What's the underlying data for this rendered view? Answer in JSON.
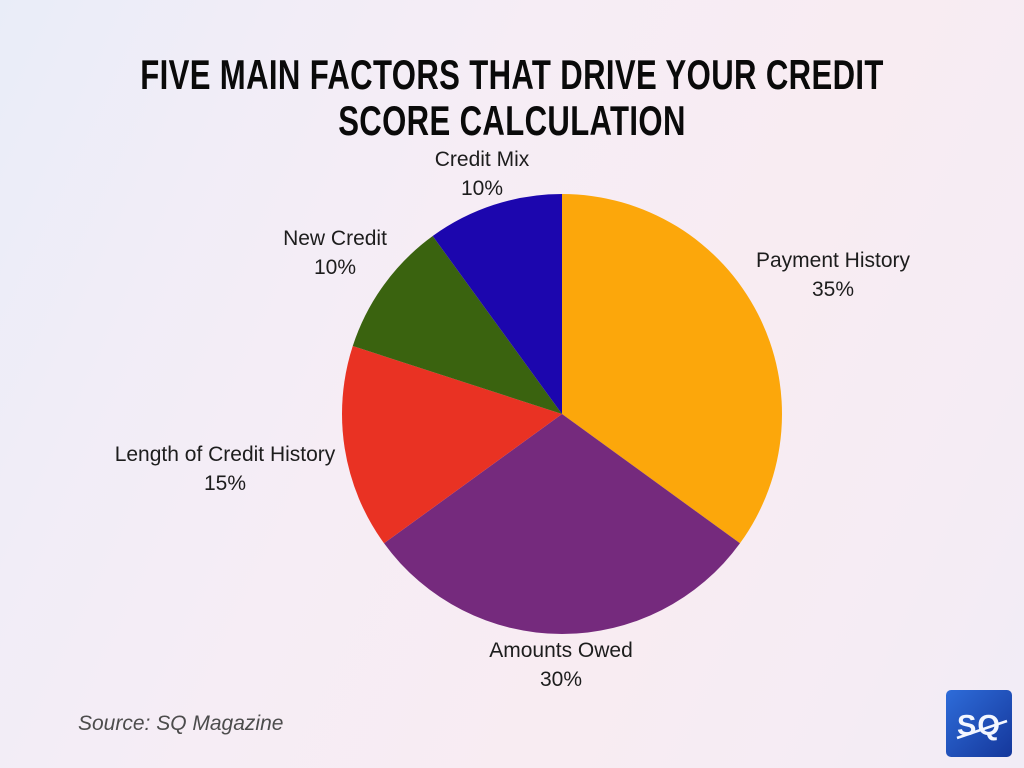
{
  "title": {
    "line1": "FIVE MAIN FACTORS THAT DRIVE YOUR CREDIT",
    "line2": "SCORE CALCULATION"
  },
  "source": "Source: SQ Magazine",
  "logo": {
    "text": "SQ",
    "bg_color_top": "#2e6cd9",
    "bg_color_bottom": "#15379b",
    "text_color": "#f4f7ff"
  },
  "theme": {
    "background_left": "#e9edf8",
    "background_right": "#f8ecf2",
    "title_color": "#0a0a0a",
    "label_color": "#1d1d1d",
    "source_color": "#4c4c4c"
  },
  "chart_data": {
    "type": "pie",
    "title": "FIVE MAIN FACTORS THAT DRIVE YOUR CREDIT SCORE CALCULATION",
    "start_angle_deg": 0,
    "direction": "clockwise",
    "legend_position": "labels-around-pie",
    "slices": [
      {
        "label": "Payment History",
        "value": 35,
        "pct_label": "35%",
        "color": "#fca70b"
      },
      {
        "label": "Amounts Owed",
        "value": 30,
        "pct_label": "30%",
        "color": "#752a7d"
      },
      {
        "label": "Length of Credit History",
        "value": 15,
        "pct_label": "15%",
        "color": "#e93223"
      },
      {
        "label": "New Credit",
        "value": 10,
        "pct_label": "10%",
        "color": "#3a630f"
      },
      {
        "label": "Credit Mix",
        "value": 10,
        "pct_label": "10%",
        "color": "#1c06ae"
      }
    ]
  }
}
